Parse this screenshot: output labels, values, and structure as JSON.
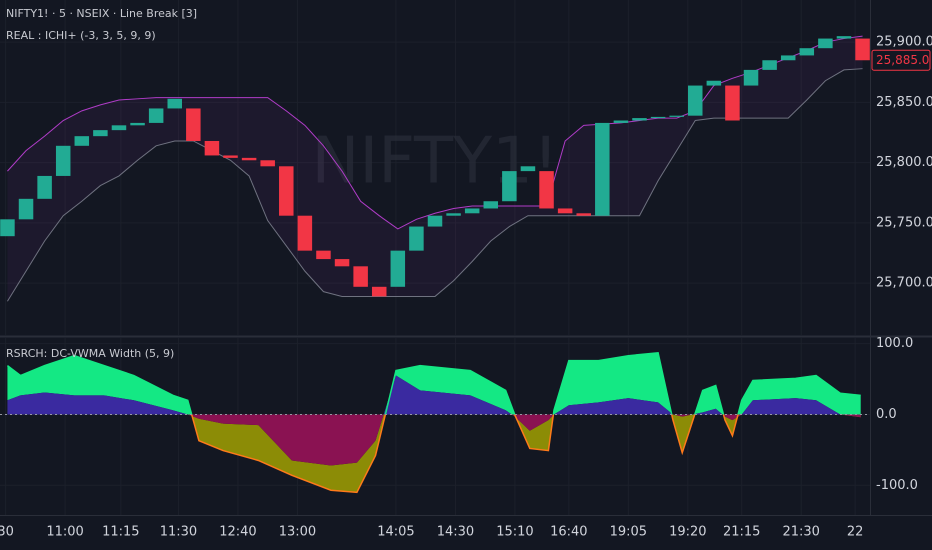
{
  "chart_data": [
    {
      "type": "candlestick",
      "title": "NIFTY1! · 5 · NSEIX · Line Break [3]",
      "subtitle": "REAL : ICHI+ (-3, 3, 5, 9, 9)",
      "watermark": "NIFTY1!",
      "open": [
        25739,
        25753,
        25770,
        25789,
        25814,
        25822,
        25827,
        25831,
        25833,
        25845,
        25845,
        25818,
        25806,
        25804,
        25802,
        25797,
        25756,
        25727,
        25720,
        25714,
        25697,
        25697,
        25727,
        25747,
        25756,
        25758,
        25762,
        25768,
        25793,
        25793,
        25762,
        25758,
        25756,
        25833,
        25835,
        25837,
        25838,
        25839,
        25864,
        25864,
        25864,
        25877,
        25885,
        25889,
        25895,
        25903,
        25903
      ],
      "close": [
        25753,
        25770,
        25789,
        25814,
        25822,
        25827,
        25831,
        25833,
        25845,
        25853,
        25818,
        25806,
        25804,
        25802,
        25797,
        25756,
        25727,
        25720,
        25714,
        25697,
        25689,
        25727,
        25747,
        25756,
        25758,
        25762,
        25768,
        25793,
        25797,
        25762,
        25758,
        25756,
        25833,
        25835,
        25837,
        25838,
        25839,
        25864,
        25868,
        25835,
        25877,
        25885,
        25889,
        25895,
        25903,
        25905,
        25885
      ],
      "up_color": "#22ab94",
      "down_color": "#f23645",
      "bands": {
        "upper": [
          25793,
          25810,
          25822,
          25835,
          25843,
          25848,
          25852,
          25853,
          25854,
          25854,
          25854,
          25854,
          25854,
          25854,
          25854,
          25843,
          25831,
          25814,
          25793,
          25768,
          25756,
          25745,
          25753,
          25758,
          25762,
          25764,
          25764,
          25764,
          25764,
          25764,
          25818,
          25831,
          25832,
          25833,
          25835,
          25837,
          25837,
          25843,
          25864,
          25870,
          25875,
          25881,
          25887,
          25893,
          25900,
          25903,
          25905
        ],
        "lower": [
          25685,
          25710,
          25735,
          25756,
          25768,
          25781,
          25789,
          25802,
          25814,
          25818,
          25818,
          25810,
          25802,
          25789,
          25752,
          25731,
          25710,
          25693,
          25689,
          25689,
          25689,
          25689,
          25689,
          25689,
          25702,
          25718,
          25735,
          25747,
          25756,
          25756,
          25756,
          25756,
          25756,
          25756,
          25756,
          25785,
          25810,
          25835,
          25837,
          25837,
          25837,
          25837,
          25837,
          25852,
          25868,
          25877,
          25878
        ],
        "upper_color": "#b03cc8",
        "lower_color": "#6f7280"
      },
      "last_price": {
        "value": 25885,
        "label": "25,885.0"
      },
      "xlim": [
        -0.4,
        46.4
      ],
      "ylim": [
        25657,
        25935
      ],
      "yticks": [
        {
          "value": 25700,
          "label": "25,700.0"
        },
        {
          "value": 25750,
          "label": "25,750.0"
        },
        {
          "value": 25800,
          "label": "25,800.0"
        },
        {
          "value": 25850,
          "label": "25,850.0"
        },
        {
          "value": 25900,
          "label": "25,900.0"
        }
      ],
      "grid": true
    },
    {
      "type": "area",
      "title": "RSRCH: DC-VWMA Width (5, 9)",
      "x": [
        0,
        0.7,
        2,
        3.6,
        5.2,
        6.8,
        8.9,
        9.7,
        10.3,
        11.6,
        13.5,
        15.3,
        17.4,
        18.8,
        19.8,
        20.9,
        22.2,
        24.9,
        26.8,
        27.3,
        28.1,
        29.1,
        29.4,
        30.2,
        31.8,
        33.4,
        35,
        35.8,
        36.3,
        37.4,
        38.1,
        38.6,
        39,
        39.5,
        40.1,
        42.4,
        43.5,
        44.8,
        45.9
      ],
      "series": [
        {
          "color": "#14e884",
          "negative_color": "#8c8c06",
          "values": [
            69,
            55,
            69,
            83,
            69,
            55,
            27,
            20,
            -37,
            -51,
            -65,
            -86,
            -107,
            -110,
            -58,
            62,
            69,
            62,
            34,
            -1,
            -48,
            -51,
            6,
            76,
            76,
            83,
            87,
            -8,
            -54,
            34,
            41,
            -8,
            -30,
            20,
            48,
            51,
            55,
            30,
            27
          ]
        },
        {
          "color": "#3a2aa0",
          "negative_color": "#8a1252",
          "values": [
            20,
            27,
            31,
            27,
            27,
            20,
            6,
            0,
            -6,
            -13,
            -15,
            -65,
            -72,
            -68,
            -37,
            55,
            34,
            27,
            6,
            -3,
            -23,
            -8,
            0,
            13,
            17,
            23,
            17,
            0,
            -3,
            3,
            8,
            -3,
            -8,
            0,
            20,
            23,
            20,
            0,
            -4
          ]
        }
      ],
      "negative_line_color": "#ff7a1a",
      "zero_line": true,
      "xlim": [
        -0.4,
        46.4
      ],
      "ylim": [
        -142,
        108
      ],
      "yticks": [
        {
          "value": -100,
          "label": "-100.0"
        },
        {
          "value": 0,
          "label": "0.0"
        },
        {
          "value": 100,
          "label": "100.0"
        }
      ],
      "xticks": [
        {
          "value": -0.1,
          "label": "30"
        },
        {
          "value": 3.1,
          "label": "11:00"
        },
        {
          "value": 6.1,
          "label": "11:15"
        },
        {
          "value": 9.2,
          "label": "11:30"
        },
        {
          "value": 12.4,
          "label": "12:40"
        },
        {
          "value": 15.6,
          "label": "13:00"
        },
        {
          "value": 20.9,
          "label": "14:05"
        },
        {
          "value": 24.1,
          "label": "14:30"
        },
        {
          "value": 27.3,
          "label": "15:10"
        },
        {
          "value": 30.2,
          "label": "16:40"
        },
        {
          "value": 33.4,
          "label": "19:05"
        },
        {
          "value": 36.6,
          "label": "19:20"
        },
        {
          "value": 39.5,
          "label": "21:15"
        },
        {
          "value": 42.7,
          "label": "21:30"
        },
        {
          "value": 45.6,
          "label": "22"
        }
      ],
      "grid": true
    }
  ]
}
